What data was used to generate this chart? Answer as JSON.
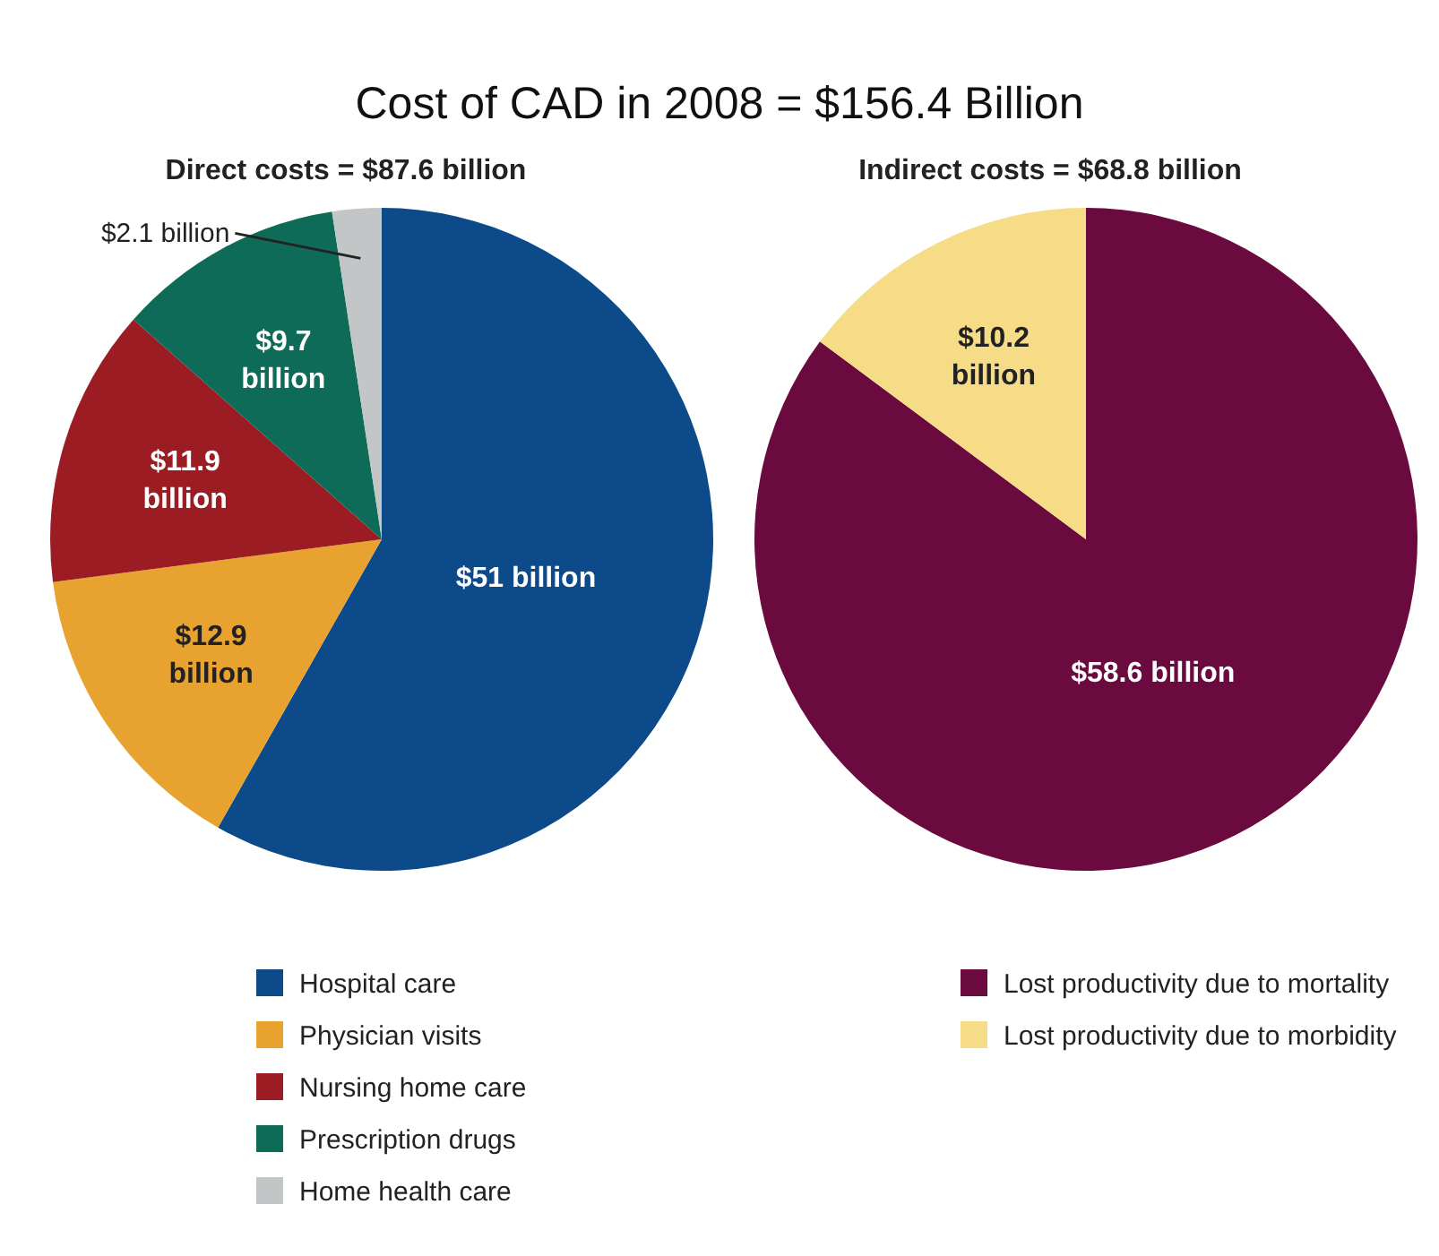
{
  "chart_data": [
    {
      "type": "pie",
      "title": "Cost of CAD in 2008 = $156.4 Billion",
      "subtitle": "Direct costs = $87.6 billion",
      "categories": [
        "Hospital care",
        "Physician visits",
        "Nursing home care",
        "Prescription drugs",
        "Home health care"
      ],
      "values": [
        51,
        12.9,
        11.9,
        9.7,
        2.1
      ],
      "colors": [
        "#0d4a8a",
        "#e8a230",
        "#9b1c22",
        "#0e6b58",
        "#c2c6c6"
      ],
      "value_labels": [
        "$51 billion",
        "$12.9 billion",
        "$11.9 billion",
        "$9.7 billion",
        "$2.1 billion"
      ],
      "legend": "bottom"
    },
    {
      "type": "pie",
      "subtitle": "Indirect costs = $68.8 billion",
      "categories": [
        "Lost productivity due to mortality",
        "Lost productivity due to morbidity"
      ],
      "values": [
        58.6,
        10.2
      ],
      "colors": [
        "#6a0a3f",
        "#f6dc86"
      ],
      "value_labels": [
        "$58.6 billion",
        "$10.2 billion"
      ],
      "legend": "bottom"
    }
  ]
}
